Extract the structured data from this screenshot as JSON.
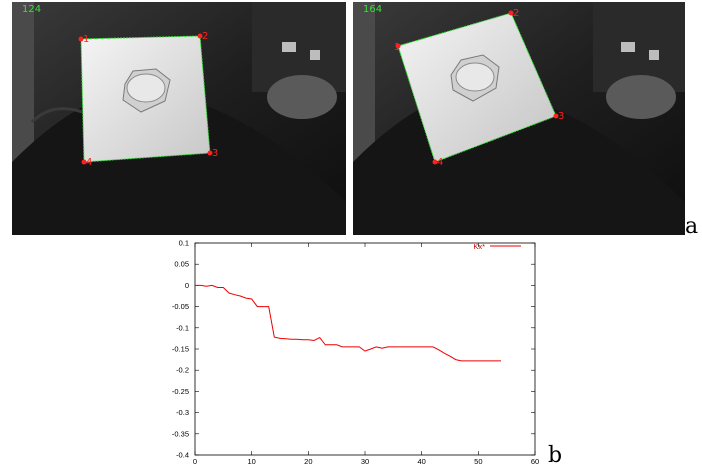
{
  "frames": [
    {
      "number": "124",
      "corners": [
        "1",
        "2",
        "3",
        "4"
      ]
    },
    {
      "number": "164",
      "corners": [
        "1",
        "2",
        "3",
        "4"
      ]
    }
  ],
  "panel_labels": {
    "a": "a",
    "b": "b"
  },
  "colors": {
    "track_line": "#36e236",
    "corner_marker": "#ff2020",
    "plot_line": "#ee0000"
  },
  "chart_data": {
    "type": "line",
    "title": "",
    "xlabel": "",
    "ylabel": "",
    "xlim": [
      0,
      60
    ],
    "ylim": [
      -0.4,
      0.1
    ],
    "x_ticks": [
      "0",
      "10",
      "20",
      "30",
      "40",
      "50",
      "60"
    ],
    "y_ticks": [
      "0.1",
      "0.05",
      "0",
      "-0.05",
      "-0.1",
      "-0.15",
      "-0.2",
      "-0.25",
      "-0.3",
      "-0.35",
      "-0.4"
    ],
    "grid": false,
    "legend_position": "top-right",
    "series": [
      {
        "name": "Kx*",
        "x": [
          0,
          1,
          2,
          3,
          4,
          5,
          6,
          7,
          8,
          9,
          10,
          11,
          12,
          13,
          14,
          15,
          16,
          17,
          18,
          19,
          20,
          21,
          22,
          23,
          24,
          25,
          26,
          27,
          28,
          29,
          30,
          31,
          32,
          33,
          34,
          35,
          36,
          37,
          38,
          39,
          40,
          41,
          42,
          43,
          44,
          45,
          46,
          47,
          48,
          49,
          50,
          51,
          52,
          53,
          54
        ],
        "y": [
          0,
          0,
          -0.002,
          0,
          -0.005,
          -0.005,
          -0.018,
          -0.022,
          -0.025,
          -0.03,
          -0.032,
          -0.05,
          -0.05,
          -0.05,
          -0.122,
          -0.125,
          -0.126,
          -0.127,
          -0.127,
          -0.128,
          -0.128,
          -0.13,
          -0.123,
          -0.14,
          -0.14,
          -0.14,
          -0.145,
          -0.145,
          -0.145,
          -0.145,
          -0.155,
          -0.15,
          -0.145,
          -0.148,
          -0.145,
          -0.145,
          -0.145,
          -0.145,
          -0.145,
          -0.145,
          -0.145,
          -0.145,
          -0.145,
          -0.152,
          -0.16,
          -0.167,
          -0.175,
          -0.178,
          -0.178,
          -0.178,
          -0.178,
          -0.178,
          -0.178,
          -0.178,
          -0.178
        ]
      }
    ]
  }
}
